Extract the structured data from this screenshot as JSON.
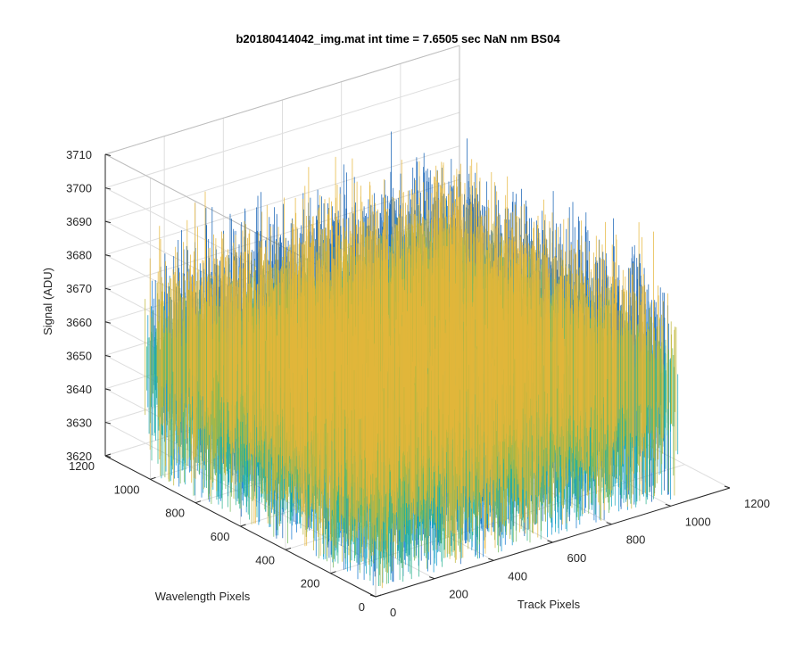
{
  "chart_data": {
    "type": "surface",
    "title": "b20180414042_img.mat int time = 7.6505 sec  NaN nm BS04",
    "xlabel": "Track Pixels",
    "ylabel": "Wavelength Pixels",
    "zlabel": "Signal (ADU)",
    "xlim": [
      0,
      1200
    ],
    "ylim": [
      0,
      1200
    ],
    "zlim": [
      3620,
      3710
    ],
    "x_ticks": [
      "0",
      "200",
      "400",
      "600",
      "800",
      "1000",
      "1200"
    ],
    "y_ticks": [
      "0",
      "200",
      "400",
      "600",
      "800",
      "1000",
      "1200"
    ],
    "z_ticks": [
      "3620",
      "3630",
      "3640",
      "3650",
      "3660",
      "3670",
      "3680",
      "3690",
      "3700",
      "3710"
    ],
    "data_extent": {
      "x": [
        0,
        1024
      ],
      "y": [
        0,
        1024
      ]
    },
    "signal_mean": 3655,
    "signal_range": [
      3628,
      3690
    ],
    "grid": true,
    "colormap": [
      "#0f5eb4",
      "#1278d2",
      "#0f96cf",
      "#18a8bd",
      "#2eb48f",
      "#74b95e",
      "#c0b73a",
      "#e6b63a"
    ]
  }
}
